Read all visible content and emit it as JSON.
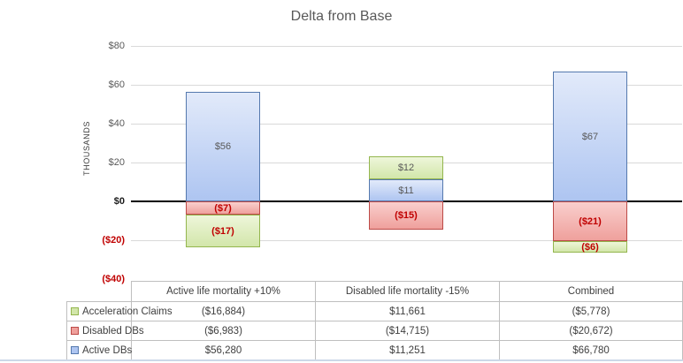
{
  "chart_data": {
    "type": "bar",
    "stacked": true,
    "title": "Delta from Base",
    "ylabel": "THOUSANDS",
    "units": "thousands",
    "ylim": [
      -40000,
      80000
    ],
    "ytick_step": 20000,
    "yticks": [
      {
        "label": "$80",
        "value": 80000
      },
      {
        "label": "$60",
        "value": 60000
      },
      {
        "label": "$40",
        "value": 40000
      },
      {
        "label": "$20",
        "value": 20000
      },
      {
        "label": "$0",
        "value": 0
      },
      {
        "label": "($20)",
        "value": -20000
      },
      {
        "label": "($40)",
        "value": -40000
      }
    ],
    "categories": [
      "Active life mortality +10%",
      "Disabled life mortality -15%",
      "Combined"
    ],
    "series": [
      {
        "name": "Acceleration Claims",
        "values": [
          -16884,
          11661,
          -5778
        ],
        "bar_labels": [
          "($17)",
          "$12",
          "($6)"
        ],
        "color": {
          "border": "#94b64e",
          "fill_top": "#eef6da",
          "fill_bottom": "#d2e6aa"
        }
      },
      {
        "name": "Disabled DBs",
        "values": [
          -6983,
          -14715,
          -20672
        ],
        "bar_labels": [
          "($7)",
          "($15)",
          "($21)"
        ],
        "color": {
          "border": "#bc4a47",
          "fill_top": "#f9cfcd",
          "fill_bottom": "#efa09c"
        }
      },
      {
        "name": "Active DBs",
        "values": [
          56280,
          11251,
          66780
        ],
        "bar_labels": [
          "$56",
          "$11",
          "$67"
        ],
        "color": {
          "border": "#5579ae",
          "fill_top": "#e2eafa",
          "fill_bottom": "#aec5f1"
        }
      }
    ],
    "stack_order_from_axis": [
      "Active DBs",
      "Disabled DBs",
      "Acceleration Claims"
    ],
    "gridline_color": "#d9d9d9",
    "zero_line_color": "#000000",
    "positive_label_color": "#595959",
    "negative_label_color": "#c00000",
    "legend_position": "table-left",
    "grid": true
  },
  "data_table": {
    "rows": [
      {
        "label": "Acceleration Claims",
        "values": [
          "($16,884)",
          "$11,661",
          "($5,778)"
        ]
      },
      {
        "label": "Disabled DBs",
        "values": [
          "($6,983)",
          "($14,715)",
          "($20,672)"
        ]
      },
      {
        "label": "Active DBs",
        "values": [
          "$56,280",
          "$11,251",
          "$66,780"
        ]
      }
    ]
  }
}
